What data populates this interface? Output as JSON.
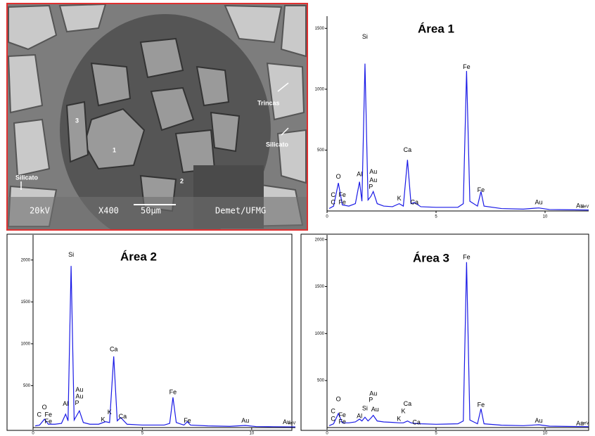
{
  "micrograph": {
    "labels": [
      "Trincas",
      "Silicato",
      "Silicato",
      "1",
      "2",
      "3"
    ],
    "scale_bar": [
      "20kV",
      "X400",
      "50µm",
      "Demet/UFMG"
    ]
  },
  "chart_data": [
    {
      "type": "line",
      "title": "Área 1",
      "xlabel": "keV",
      "color": "#1a1ae6",
      "x": [
        0.1,
        0.3,
        0.52,
        0.7,
        1.0,
        1.3,
        1.49,
        1.6,
        1.74,
        1.88,
        2.01,
        2.12,
        2.3,
        2.6,
        3.0,
        3.31,
        3.5,
        3.69,
        3.85,
        4.01,
        4.3,
        5.0,
        6.0,
        6.25,
        6.4,
        6.55,
        6.9,
        7.06,
        7.2,
        8.0,
        9.0,
        9.71,
        10.2,
        11.0,
        12.0
      ],
      "values": [
        20,
        40,
        230,
        50,
        40,
        60,
        240,
        80,
        1210,
        90,
        120,
        160,
        60,
        40,
        35,
        60,
        40,
        420,
        60,
        70,
        35,
        30,
        30,
        60,
        1150,
        80,
        40,
        160,
        40,
        20,
        15,
        25,
        12,
        10,
        8
      ],
      "xlim": [
        0,
        12
      ],
      "ylim": [
        0,
        1600
      ],
      "xticks": [
        0,
        5,
        10
      ],
      "yticks": [
        500,
        1000,
        1500
      ],
      "annotations": [
        {
          "text": "Si",
          "x": 1.74,
          "y": 1430
        },
        {
          "text": "Fe",
          "x": 6.4,
          "y": 1180
        },
        {
          "text": "Ca",
          "x": 3.69,
          "y": 500
        },
        {
          "text": "O",
          "x": 0.52,
          "y": 280
        },
        {
          "text": "Al",
          "x": 1.49,
          "y": 300
        },
        {
          "text": "Au",
          "x": 2.12,
          "y": 320
        },
        {
          "text": "Au",
          "x": 2.12,
          "y": 250
        },
        {
          "text": "P",
          "x": 2.01,
          "y": 195
        },
        {
          "text": "C",
          "x": 0.28,
          "y": 130
        },
        {
          "text": "Fe",
          "x": 0.7,
          "y": 130
        },
        {
          "text": "C",
          "x": 0.28,
          "y": 70
        },
        {
          "text": "Fe",
          "x": 0.7,
          "y": 70
        },
        {
          "text": "K",
          "x": 3.31,
          "y": 100
        },
        {
          "text": "Ca",
          "x": 4.01,
          "y": 70
        },
        {
          "text": "Fe",
          "x": 7.06,
          "y": 170
        },
        {
          "text": "Au",
          "x": 9.71,
          "y": 70
        },
        {
          "text": "Au",
          "x": 11.6,
          "y": 40
        }
      ]
    },
    {
      "type": "line",
      "title": "Área 2",
      "xlabel": "keV",
      "color": "#1a1ae6",
      "x": [
        0.1,
        0.3,
        0.52,
        0.7,
        1.0,
        1.3,
        1.49,
        1.6,
        1.74,
        1.88,
        2.01,
        2.12,
        2.3,
        2.6,
        3.0,
        3.31,
        3.5,
        3.69,
        3.85,
        4.01,
        4.3,
        5.0,
        6.0,
        6.25,
        6.4,
        6.55,
        6.9,
        7.06,
        7.2,
        8.0,
        9.0,
        9.71,
        10.2,
        11.0,
        12.0
      ],
      "values": [
        20,
        30,
        100,
        40,
        40,
        50,
        160,
        80,
        1930,
        90,
        150,
        200,
        60,
        40,
        40,
        70,
        60,
        850,
        80,
        120,
        40,
        30,
        30,
        50,
        360,
        60,
        30,
        70,
        30,
        20,
        15,
        25,
        12,
        10,
        8
      ],
      "xlim": [
        0,
        12
      ],
      "ylim": [
        0,
        2300
      ],
      "xticks": [
        0,
        5,
        10
      ],
      "yticks": [
        500,
        1000,
        1500,
        2000
      ],
      "annotations": [
        {
          "text": "Si",
          "x": 1.74,
          "y": 2060
        },
        {
          "text": "Ca",
          "x": 3.69,
          "y": 930
        },
        {
          "text": "Fe",
          "x": 6.4,
          "y": 420
        },
        {
          "text": "Au",
          "x": 2.12,
          "y": 450
        },
        {
          "text": "Au",
          "x": 2.12,
          "y": 370
        },
        {
          "text": "P",
          "x": 2.01,
          "y": 290
        },
        {
          "text": "Al",
          "x": 1.49,
          "y": 280
        },
        {
          "text": "O",
          "x": 0.52,
          "y": 240
        },
        {
          "text": "C",
          "x": 0.28,
          "y": 150
        },
        {
          "text": "Fe",
          "x": 0.7,
          "y": 150
        },
        {
          "text": "Fe",
          "x": 0.7,
          "y": 70
        },
        {
          "text": "K",
          "x": 3.5,
          "y": 180
        },
        {
          "text": "K",
          "x": 3.2,
          "y": 90
        },
        {
          "text": "Ca",
          "x": 4.1,
          "y": 130
        },
        {
          "text": "Fe",
          "x": 7.06,
          "y": 80
        },
        {
          "text": "Au",
          "x": 9.71,
          "y": 80
        },
        {
          "text": "Au",
          "x": 11.6,
          "y": 60
        }
      ]
    },
    {
      "type": "line",
      "title": "Área 3",
      "xlabel": "keV",
      "color": "#1a1ae6",
      "x": [
        0.1,
        0.3,
        0.52,
        0.7,
        1.0,
        1.3,
        1.49,
        1.6,
        1.74,
        1.88,
        2.01,
        2.12,
        2.3,
        2.6,
        3.0,
        3.31,
        3.5,
        3.69,
        3.85,
        4.01,
        4.3,
        5.0,
        6.0,
        6.25,
        6.4,
        6.55,
        6.9,
        7.06,
        7.2,
        8.0,
        9.0,
        9.71,
        10.2,
        11.0,
        12.0
      ],
      "values": [
        20,
        40,
        150,
        50,
        50,
        60,
        90,
        70,
        110,
        70,
        100,
        130,
        70,
        60,
        55,
        50,
        50,
        70,
        50,
        45,
        40,
        35,
        40,
        70,
        1760,
        80,
        40,
        200,
        40,
        25,
        20,
        30,
        15,
        12,
        10
      ],
      "xlim": [
        0,
        12
      ],
      "ylim": [
        0,
        2050
      ],
      "xticks": [
        0,
        5,
        10
      ],
      "yticks": [
        500,
        1000,
        1500,
        2000
      ],
      "annotations": [
        {
          "text": "Fe",
          "x": 6.4,
          "y": 1810
        },
        {
          "text": "Fe",
          "x": 7.06,
          "y": 240
        },
        {
          "text": "O",
          "x": 0.52,
          "y": 300
        },
        {
          "text": "Au",
          "x": 2.12,
          "y": 360
        },
        {
          "text": "P",
          "x": 2.01,
          "y": 290
        },
        {
          "text": "Si",
          "x": 1.74,
          "y": 200
        },
        {
          "text": "Au",
          "x": 2.2,
          "y": 190
        },
        {
          "text": "Al",
          "x": 1.49,
          "y": 120
        },
        {
          "text": "Ca",
          "x": 3.69,
          "y": 250
        },
        {
          "text": "K",
          "x": 3.5,
          "y": 170
        },
        {
          "text": "K",
          "x": 3.3,
          "y": 90
        },
        {
          "text": "Ca",
          "x": 4.1,
          "y": 50
        },
        {
          "text": "C",
          "x": 0.28,
          "y": 170
        },
        {
          "text": "Fe",
          "x": 0.7,
          "y": 130
        },
        {
          "text": "C",
          "x": 0.28,
          "y": 90
        },
        {
          "text": "Fe",
          "x": 0.7,
          "y": 60
        },
        {
          "text": "Au",
          "x": 9.71,
          "y": 70
        },
        {
          "text": "Au",
          "x": 11.6,
          "y": 40
        }
      ]
    }
  ]
}
